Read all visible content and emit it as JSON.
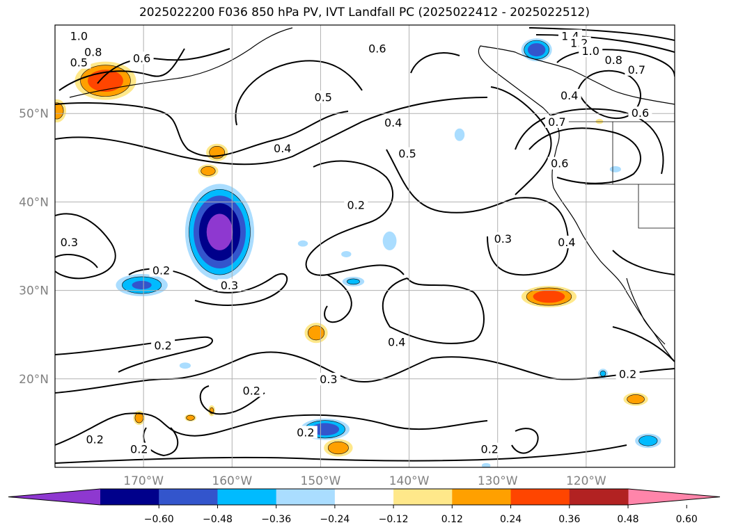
{
  "title": "2025022200 F036 850 hPa PV, IVT Landfall PC (2025022412 - 2025022512)",
  "map": {
    "lon_range": [
      -180,
      -110
    ],
    "lat_range": [
      10,
      60
    ],
    "lon_ticks": [
      {
        "value": -170,
        "label": "170°W"
      },
      {
        "value": -160,
        "label": "160°W"
      },
      {
        "value": -150,
        "label": "150°W"
      },
      {
        "value": -140,
        "label": "140°W"
      },
      {
        "value": -130,
        "label": "130°W"
      },
      {
        "value": -120,
        "label": "120°W"
      }
    ],
    "lat_ticks": [
      {
        "value": 50,
        "label": "50°N"
      },
      {
        "value": 40,
        "label": "40°N"
      },
      {
        "value": 30,
        "label": "30°N"
      },
      {
        "value": 20,
        "label": "20°N"
      }
    ],
    "grid": true,
    "tick_label_color": "#808080"
  },
  "contour_labels": [
    {
      "text": "1.0",
      "lon": -177.3,
      "lat": 58.7
    },
    {
      "text": "0.8",
      "lon": -175.7,
      "lat": 56.9
    },
    {
      "text": "0.6",
      "lon": -170.2,
      "lat": 56.2
    },
    {
      "text": "0.5",
      "lon": -177.3,
      "lat": 55.7
    },
    {
      "text": "0.6",
      "lon": -143.6,
      "lat": 57.3
    },
    {
      "text": "1.4",
      "lon": -121.8,
      "lat": 58.7
    },
    {
      "text": "1.2",
      "lon": -120.8,
      "lat": 57.9
    },
    {
      "text": "1.0",
      "lon": -119.5,
      "lat": 57.0
    },
    {
      "text": "0.8",
      "lon": -116.9,
      "lat": 56.0
    },
    {
      "text": "0.7",
      "lon": -114.3,
      "lat": 54.9
    },
    {
      "text": "0.4",
      "lon": -121.9,
      "lat": 52.0
    },
    {
      "text": "0.6",
      "lon": -113.9,
      "lat": 50.0
    },
    {
      "text": "0.7",
      "lon": -123.3,
      "lat": 49.0
    },
    {
      "text": "0.5",
      "lon": -149.7,
      "lat": 51.8
    },
    {
      "text": "0.4",
      "lon": -141.8,
      "lat": 48.9
    },
    {
      "text": "0.4",
      "lon": -154.3,
      "lat": 46.0
    },
    {
      "text": "0.5",
      "lon": -140.2,
      "lat": 45.4
    },
    {
      "text": "0.6",
      "lon": -123.0,
      "lat": 44.3
    },
    {
      "text": "0.2",
      "lon": -146.0,
      "lat": 39.6
    },
    {
      "text": "0.3",
      "lon": -178.4,
      "lat": 35.4
    },
    {
      "text": "0.3",
      "lon": -129.4,
      "lat": 35.8
    },
    {
      "text": "0.4",
      "lon": -122.2,
      "lat": 35.4
    },
    {
      "text": "0.2",
      "lon": -168.0,
      "lat": 32.2
    },
    {
      "text": "0.3",
      "lon": -160.3,
      "lat": 30.5
    },
    {
      "text": "0.4",
      "lon": -141.4,
      "lat": 24.1
    },
    {
      "text": "0.2",
      "lon": -167.8,
      "lat": 23.7
    },
    {
      "text": "0.3",
      "lon": -149.1,
      "lat": 19.9
    },
    {
      "text": "0.2",
      "lon": -157.8,
      "lat": 18.6
    },
    {
      "text": "0.2",
      "lon": -115.3,
      "lat": 20.5
    },
    {
      "text": "0.2",
      "lon": -151.7,
      "lat": 13.9
    },
    {
      "text": "0.2",
      "lon": -175.5,
      "lat": 13.1
    },
    {
      "text": "0.2",
      "lon": -170.5,
      "lat": 12.0
    },
    {
      "text": "0.2",
      "lon": -130.9,
      "lat": 12.0
    }
  ],
  "colorbar": {
    "colors": [
      "#8e38d0",
      "#00008b",
      "#3355cc",
      "#00bbff",
      "#aaddff",
      "#ffffff",
      "#ffe88a",
      "#ffa000",
      "#ff4500",
      "#b22222",
      "#ff85aa"
    ],
    "tick_labels": [
      "−0.60",
      "−0.48",
      "−0.36",
      "−0.24",
      "−0.12",
      "0.12",
      "0.24",
      "0.36",
      "0.48",
      "0.60"
    ],
    "extend": "both"
  },
  "anomalies": [
    {
      "sign": "positive",
      "lon": -174.3,
      "lat": 53.7,
      "rx": 4.0,
      "ry": 2.5,
      "max": 0.48
    },
    {
      "sign": "positive",
      "lon": -179.8,
      "lat": 50.3,
      "rx": 1.3,
      "ry": 1.6,
      "max": 0.36
    },
    {
      "sign": "positive",
      "lon": -161.7,
      "lat": 45.6,
      "rx": 1.5,
      "ry": 1.2,
      "max": 0.36
    },
    {
      "sign": "positive",
      "lon": -162.7,
      "lat": 43.5,
      "rx": 1.4,
      "ry": 0.9,
      "max": 0.36
    },
    {
      "sign": "negative",
      "lon": -161.4,
      "lat": 36.6,
      "rx": 4.3,
      "ry": 6.0,
      "max": 0.68
    },
    {
      "sign": "negative",
      "lon": -170.2,
      "lat": 30.6,
      "rx": 3.5,
      "ry": 1.5,
      "max": 0.4
    },
    {
      "sign": "positive",
      "lon": -124.2,
      "lat": 29.3,
      "rx": 3.6,
      "ry": 1.4,
      "max": 0.48
    },
    {
      "sign": "positive",
      "lon": -150.5,
      "lat": 25.2,
      "rx": 1.6,
      "ry": 1.4,
      "max": 0.36
    },
    {
      "sign": "negative",
      "lon": -149.5,
      "lat": 14.3,
      "rx": 3.2,
      "ry": 1.4,
      "max": 0.48
    },
    {
      "sign": "negative",
      "lon": -125.6,
      "lat": 57.2,
      "rx": 2.0,
      "ry": 1.5,
      "max": 0.48
    },
    {
      "sign": "positive",
      "lon": -148.0,
      "lat": 12.2,
      "rx": 2.0,
      "ry": 1.2,
      "max": 0.36
    },
    {
      "sign": "positive",
      "lon": -114.4,
      "lat": 17.7,
      "rx": 1.7,
      "ry": 0.9,
      "max": 0.36
    },
    {
      "sign": "negative",
      "lon": -113.0,
      "lat": 13.0,
      "rx": 1.8,
      "ry": 1.0,
      "max": 0.36
    },
    {
      "sign": "negative",
      "lon": -142.2,
      "lat": 35.6,
      "rx": 1.1,
      "ry": 1.5,
      "max": 0.24
    },
    {
      "sign": "negative",
      "lon": -146.3,
      "lat": 31.0,
      "rx": 1.6,
      "ry": 0.7,
      "max": 0.3
    },
    {
      "sign": "negative",
      "lon": -134.3,
      "lat": 47.6,
      "rx": 0.8,
      "ry": 1.0,
      "max": 0.24
    },
    {
      "sign": "negative",
      "lon": -118.1,
      "lat": 20.6,
      "rx": 0.7,
      "ry": 0.7,
      "max": 0.3
    },
    {
      "sign": "negative",
      "lon": -165.3,
      "lat": 21.5,
      "rx": 0.9,
      "ry": 0.5,
      "max": 0.24
    },
    {
      "sign": "positive",
      "lon": -170.5,
      "lat": 15.6,
      "rx": 0.8,
      "ry": 1.0,
      "max": 0.36
    },
    {
      "sign": "positive",
      "lon": -164.7,
      "lat": 15.6,
      "rx": 0.8,
      "ry": 0.5,
      "max": 0.36
    },
    {
      "sign": "positive",
      "lon": -162.3,
      "lat": 16.4,
      "rx": 0.5,
      "ry": 0.8,
      "max": 0.3
    },
    {
      "sign": "negative",
      "lon": -146.4,
      "lat": 39.9,
      "rx": 0.8,
      "ry": 0.6,
      "max": 0.24
    },
    {
      "sign": "positive",
      "lon": -118.5,
      "lat": 49.1,
      "rx": 0.6,
      "ry": 0.4,
      "max": 0.24
    },
    {
      "sign": "negative",
      "lon": -116.7,
      "lat": 43.7,
      "rx": 0.9,
      "ry": 0.5,
      "max": 0.24
    },
    {
      "sign": "negative",
      "lon": -152.0,
      "lat": 35.3,
      "rx": 0.8,
      "ry": 0.5,
      "max": 0.24
    },
    {
      "sign": "negative",
      "lon": -147.1,
      "lat": 34.1,
      "rx": 0.8,
      "ry": 0.5,
      "max": 0.24
    },
    {
      "sign": "negative",
      "lon": -131.3,
      "lat": 10.2,
      "rx": 0.7,
      "ry": 0.4,
      "max": 0.24
    }
  ]
}
